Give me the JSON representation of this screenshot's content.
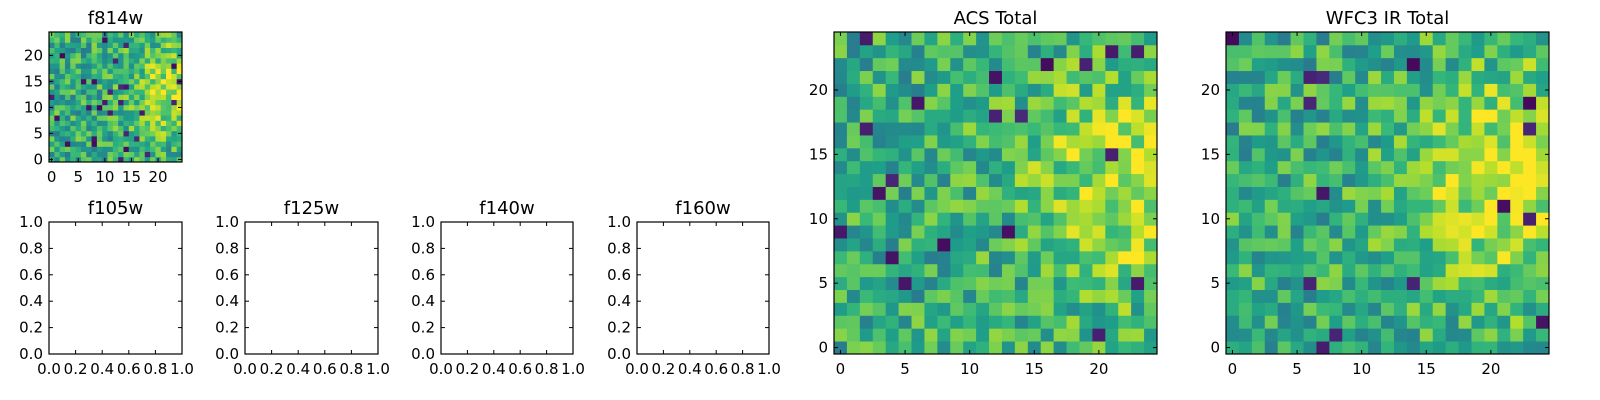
{
  "chart_data": [
    {
      "type": "heatmap",
      "title": "f814w",
      "xlim": [
        -0.5,
        24.5
      ],
      "ylim": [
        -0.5,
        24.5
      ],
      "xticks": [
        0,
        5,
        10,
        15,
        20
      ],
      "yticks": [
        0,
        5,
        10,
        15,
        20
      ],
      "xtick_labels": [
        "0",
        "5",
        "10",
        "15",
        "20"
      ],
      "ytick_labels": [
        "0",
        "5",
        "10",
        "15",
        "20"
      ],
      "colormap": "viridis",
      "grid": false,
      "seed": 814,
      "hotspot": [
        24,
        13
      ],
      "notes": ""
    },
    {
      "type": "empty",
      "title": "f105w",
      "xlim": [
        0,
        1
      ],
      "ylim": [
        0,
        1
      ],
      "xticks": [
        0,
        0.2,
        0.4,
        0.6,
        0.8,
        1.0
      ],
      "yticks": [
        0,
        0.2,
        0.4,
        0.6,
        0.8,
        1.0
      ],
      "xtick_labels": [
        "0.0",
        "0.2",
        "0.4",
        "0.6",
        "0.8",
        "1.0"
      ],
      "ytick_labels": [
        "0.0",
        "0.2",
        "0.4",
        "0.6",
        "0.8",
        "1.0"
      ]
    },
    {
      "type": "empty",
      "title": "f125w",
      "xlim": [
        0,
        1
      ],
      "ylim": [
        0,
        1
      ],
      "xticks": [
        0,
        0.2,
        0.4,
        0.6,
        0.8,
        1.0
      ],
      "yticks": [
        0,
        0.2,
        0.4,
        0.6,
        0.8,
        1.0
      ],
      "xtick_labels": [
        "0.0",
        "0.2",
        "0.4",
        "0.6",
        "0.8",
        "1.0"
      ],
      "ytick_labels": [
        "0.0",
        "0.2",
        "0.4",
        "0.6",
        "0.8",
        "1.0"
      ]
    },
    {
      "type": "empty",
      "title": "f140w",
      "xlim": [
        0,
        1
      ],
      "ylim": [
        0,
        1
      ],
      "xticks": [
        0,
        0.2,
        0.4,
        0.6,
        0.8,
        1.0
      ],
      "yticks": [
        0,
        0.2,
        0.4,
        0.6,
        0.8,
        1.0
      ],
      "xtick_labels": [
        "0.0",
        "0.2",
        "0.4",
        "0.6",
        "0.8",
        "1.0"
      ],
      "ytick_labels": [
        "0.0",
        "0.2",
        "0.4",
        "0.6",
        "0.8",
        "1.0"
      ]
    },
    {
      "type": "empty",
      "title": "f160w",
      "xlim": [
        0,
        1
      ],
      "ylim": [
        0,
        1
      ],
      "xticks": [
        0,
        0.2,
        0.4,
        0.6,
        0.8,
        1.0
      ],
      "yticks": [
        0,
        0.2,
        0.4,
        0.6,
        0.8,
        1.0
      ],
      "xtick_labels": [
        "0.0",
        "0.2",
        "0.4",
        "0.6",
        "0.8",
        "1.0"
      ],
      "ytick_labels": [
        "0.0",
        "0.2",
        "0.4",
        "0.6",
        "0.8",
        "1.0"
      ]
    },
    {
      "type": "heatmap",
      "title": "ACS Total",
      "xlim": [
        -0.5,
        24.5
      ],
      "ylim": [
        -0.5,
        24.5
      ],
      "xticks": [
        0,
        5,
        10,
        15,
        20
      ],
      "yticks": [
        0,
        5,
        10,
        15,
        20
      ],
      "xtick_labels": [
        "0",
        "5",
        "10",
        "15",
        "20"
      ],
      "ytick_labels": [
        "0",
        "5",
        "10",
        "15",
        "20"
      ],
      "colormap": "viridis",
      "grid": false,
      "seed": 2001,
      "hotspot": [
        23,
        13
      ],
      "notes": ""
    },
    {
      "type": "heatmap",
      "title": "WFC3 IR Total",
      "xlim": [
        -0.5,
        24.5
      ],
      "ylim": [
        -0.5,
        24.5
      ],
      "xticks": [
        0,
        5,
        10,
        15,
        20
      ],
      "yticks": [
        0,
        5,
        10,
        15,
        20
      ],
      "xtick_labels": [
        "0",
        "5",
        "10",
        "15",
        "20"
      ],
      "ytick_labels": [
        "0",
        "5",
        "10",
        "15",
        "20"
      ],
      "colormap": "viridis",
      "grid": false,
      "seed": 3303,
      "hotspot": [
        22,
        13
      ],
      "notes": ""
    }
  ]
}
